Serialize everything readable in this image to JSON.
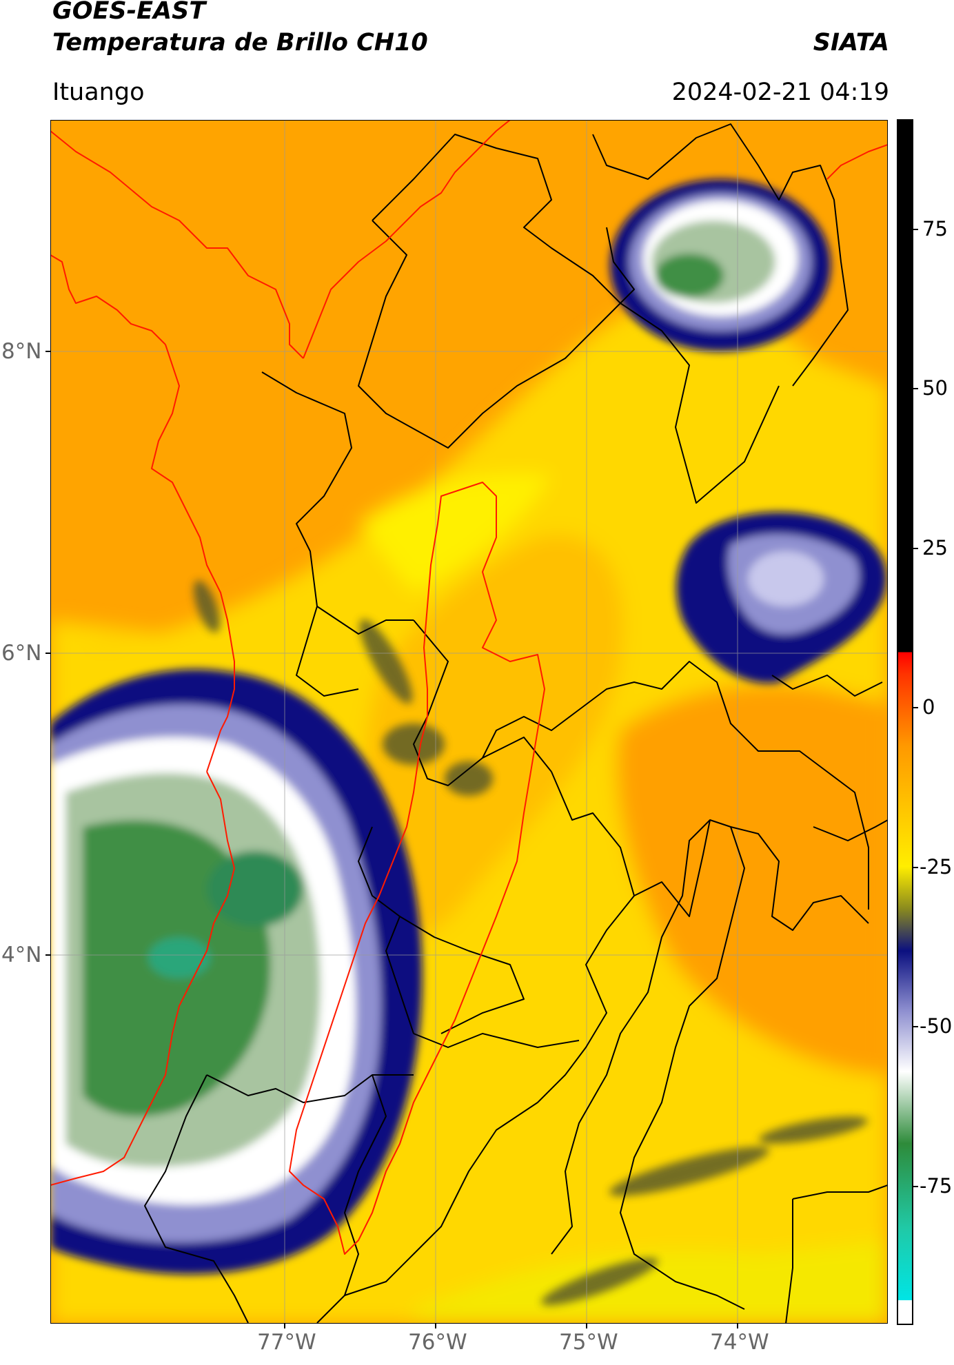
{
  "header": {
    "satellite": "GOES-EAST",
    "product": "Temperatura de Brillo CH10",
    "brand": "SIATA",
    "location": "Ituango",
    "timestamp": "2024-02-21 04:19"
  },
  "map": {
    "lat_labels": [
      "8°N",
      "6°N",
      "4°N"
    ],
    "lon_labels": [
      "77°W",
      "76°W",
      "75°W",
      "74°W"
    ],
    "grid": true
  },
  "colorbar": {
    "ticks": [
      "75",
      "50",
      "25",
      "0",
      "-25",
      "-50",
      "-75"
    ],
    "colors": {
      "black": "#000000",
      "red": "#ff1a00",
      "orange": "#ff9900",
      "yellow": "#ffee00",
      "olive": "#8a8a1e",
      "navy": "#0b1080",
      "lavender": "#8f90d0",
      "white": "#ffffff",
      "green": "#2e8b3a",
      "turquoise": "#20c9a6",
      "cyan": "#00e5e5"
    }
  }
}
